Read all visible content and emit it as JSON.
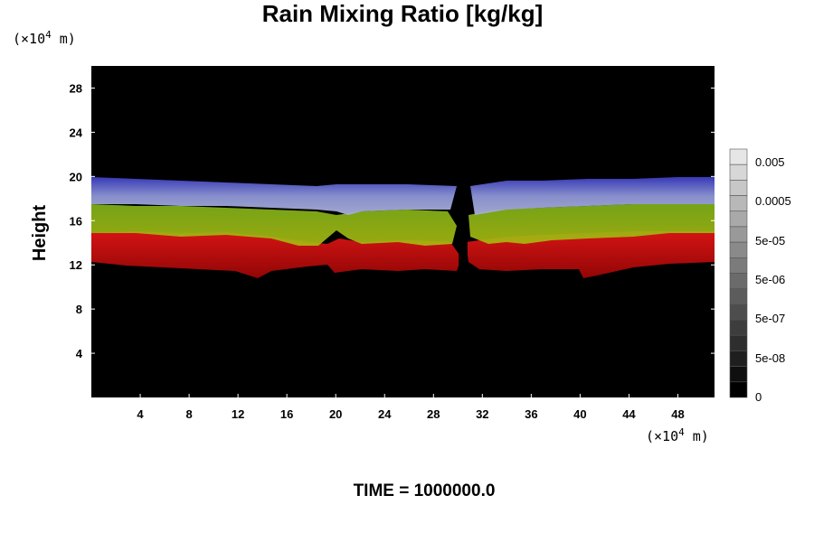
{
  "chart_data": {
    "type": "heatmap",
    "title": "Rain Mixing Ratio [kg/kg]",
    "ylabel": "Height",
    "xlabel": "",
    "y_unit": "(×10",
    "x_unit": "(×10",
    "unit_exponent": "4",
    "unit_suffix": " m)",
    "xlim": [
      0,
      51
    ],
    "ylim": [
      0,
      30
    ],
    "x_ticks": [
      4,
      8,
      12,
      16,
      20,
      24,
      28,
      32,
      36,
      40,
      44,
      48
    ],
    "y_ticks": [
      4,
      8,
      12,
      16,
      20,
      24,
      28
    ],
    "colorbar": {
      "labels": [
        "0.005",
        "0.0005",
        "5e-05",
        "5e-06",
        "5e-07",
        "5e-08",
        "0"
      ],
      "levels": 16
    },
    "background_color": "#000000",
    "bands": [
      {
        "name": "red",
        "color": "#cc0a0a",
        "y_bottom": 12.3,
        "y_top": 15.3
      },
      {
        "name": "yellow-green",
        "color": "#8cae10",
        "y_bottom": 15.0,
        "y_top": 17.5
      },
      {
        "name": "blue-white",
        "color": "#7a86cc",
        "y_bottom": 17.2,
        "y_top": 19.8
      }
    ],
    "gap_x": 30
  },
  "footer": {
    "time_label": "TIME = 1000000.0"
  }
}
